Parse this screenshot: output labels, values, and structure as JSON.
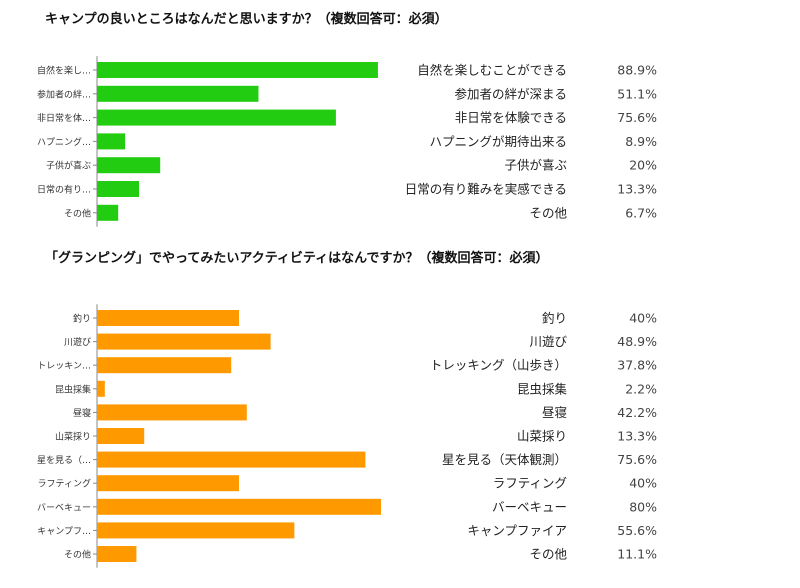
{
  "chart_data": [
    {
      "type": "bar",
      "orientation": "horizontal",
      "title": "キャンプの良いところはなんだと思いますか？（複数回答可：必須）",
      "color": "#22cc11",
      "categories": [
        "自然を楽し…",
        "参加者の絆…",
        "非日常を体…",
        "ハプニング…",
        "子供が喜ぶ",
        "日常の有り…",
        "その他"
      ],
      "labels": [
        "自然を楽しむことができる",
        "参加者の絆が深まる",
        "非日常を体験できる",
        "ハプニングが期待出来る",
        "子供が喜ぶ",
        "日常の有り難みを実感できる",
        "その他"
      ],
      "values": [
        88.9,
        51.1,
        75.6,
        8.9,
        20,
        13.3,
        6.7
      ],
      "value_labels": [
        "88.9%",
        "51.1%",
        "75.6%",
        "8.9%",
        "20%",
        "13.3%",
        "6.7%"
      ],
      "xlim": [
        0,
        100
      ]
    },
    {
      "type": "bar",
      "orientation": "horizontal",
      "title": "「グランピング」でやってみたいアクティビティはなんですか？（複数回答可：必須）",
      "color": "#ff9900",
      "categories": [
        "釣り",
        "川遊び",
        "トレッキン…",
        "昆虫採集",
        "昼寝",
        "山菜採り",
        "星を見る（…",
        "ラフティング",
        "バーベキュー",
        "キャンプフ…",
        "その他"
      ],
      "labels": [
        "釣り",
        "川遊び",
        "トレッキング（山歩き）",
        "昆虫採集",
        "昼寝",
        "山菜採り",
        "星を見る（天体観測）",
        "ラフティング",
        "バーベキュー",
        "キャンプファイア",
        "その他"
      ],
      "values": [
        40,
        48.9,
        37.8,
        2.2,
        42.2,
        13.3,
        75.6,
        40,
        80,
        55.6,
        11.1
      ],
      "value_labels": [
        "40%",
        "48.9%",
        "37.8%",
        "2.2%",
        "42.2%",
        "13.3%",
        "75.6%",
        "40%",
        "80%",
        "55.6%",
        "11.1%"
      ],
      "xlim": [
        0,
        100
      ]
    }
  ]
}
